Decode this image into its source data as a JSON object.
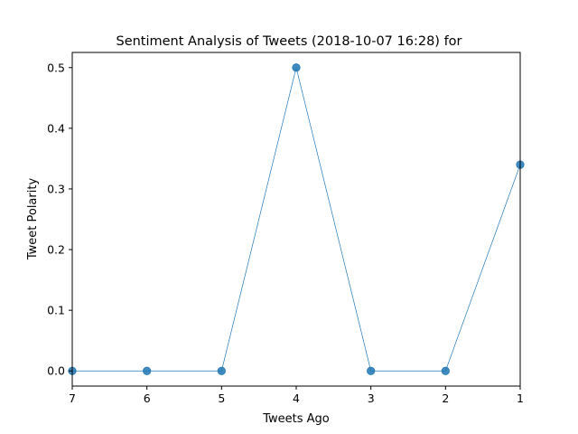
{
  "chart_data": {
    "type": "line",
    "title": "Sentiment Analysis of Tweets (2018-10-07 16:28) for",
    "xlabel": "Tweets Ago",
    "ylabel": "Tweet Polarity",
    "x": [
      7,
      6,
      5,
      4,
      3,
      2,
      1
    ],
    "xlim": [
      7,
      1
    ],
    "ylim": [
      -0.025,
      0.525
    ],
    "xticks": [
      "7",
      "6",
      "5",
      "4",
      "3",
      "2",
      "1"
    ],
    "yticks": [
      "0.0",
      "0.1",
      "0.2",
      "0.3",
      "0.4",
      "0.5"
    ],
    "series": [
      {
        "values": [
          0.0,
          0.0,
          0.0,
          0.5,
          0.0,
          0.0,
          0.34
        ],
        "color": "#1f77b4",
        "marker": "circle"
      }
    ],
    "grid": false,
    "legend": "none"
  }
}
